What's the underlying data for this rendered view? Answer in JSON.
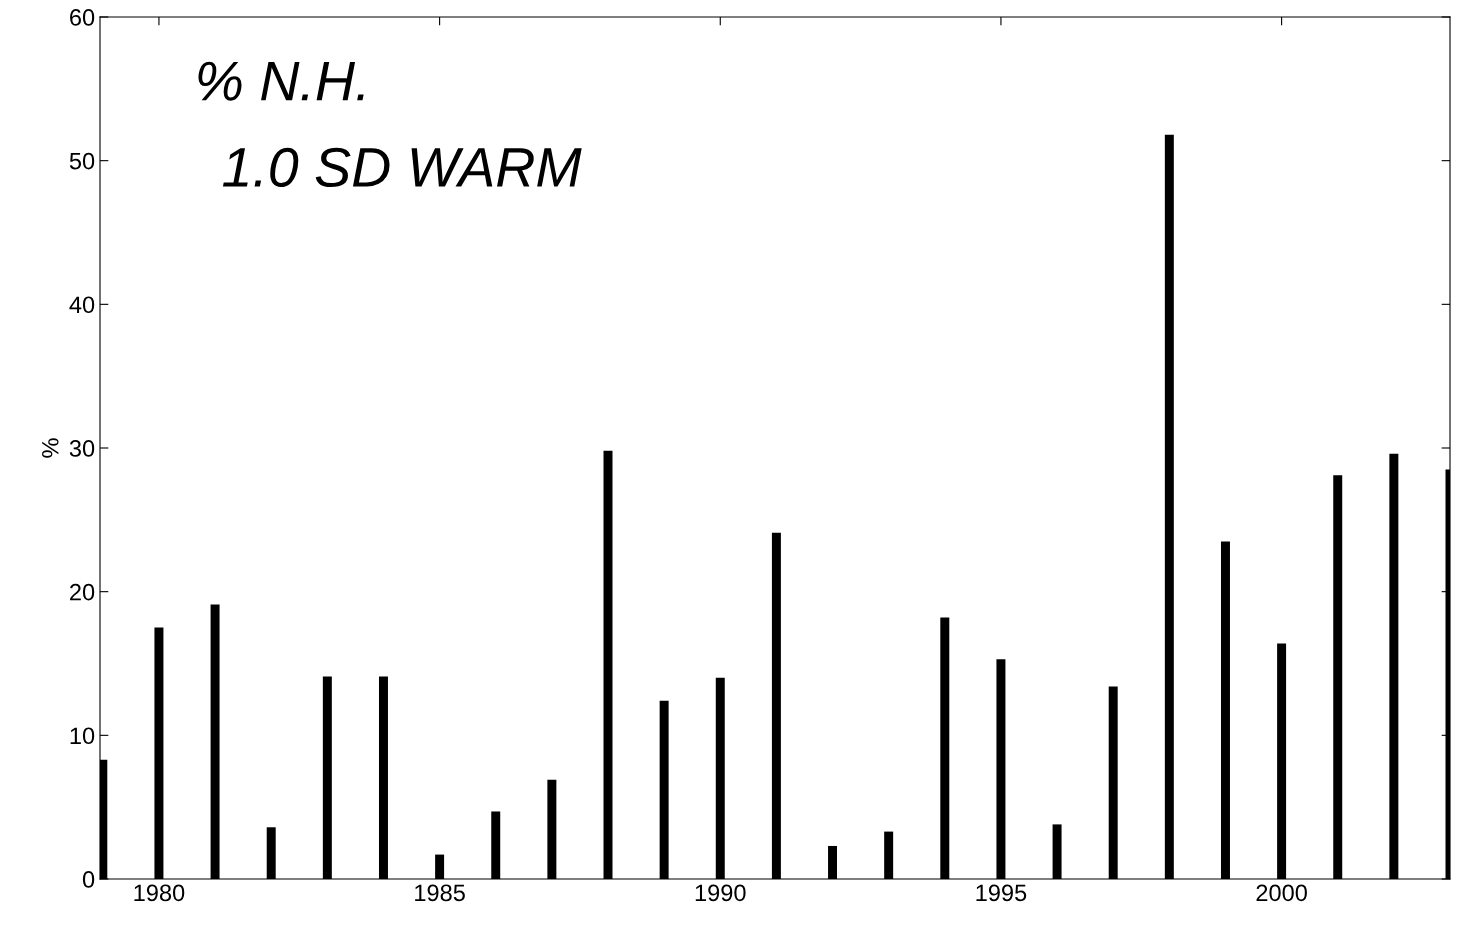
{
  "chart_data": {
    "type": "bar",
    "ylabel": "%",
    "x": [
      1979,
      1980,
      1981,
      1982,
      1983,
      1984,
      1985,
      1986,
      1987,
      1988,
      1989,
      1990,
      1991,
      1992,
      1993,
      1994,
      1995,
      1996,
      1997,
      1998,
      1999,
      2000,
      2001,
      2002,
      2003
    ],
    "values": [
      8.3,
      17.5,
      19.1,
      3.6,
      14.1,
      14.1,
      1.7,
      4.7,
      6.9,
      29.8,
      12.4,
      14.0,
      24.1,
      2.3,
      3.3,
      18.2,
      15.3,
      3.8,
      13.4,
      51.8,
      23.5,
      16.4,
      28.1,
      29.6,
      28.5
    ],
    "color": "#000000",
    "xlim": [
      1978.95,
      2003.0
    ],
    "xticks": [
      1980,
      1985,
      1990,
      1995,
      2000
    ],
    "ylim": [
      0,
      60
    ],
    "yticks": [
      0,
      10,
      20,
      30,
      40,
      50,
      60
    ],
    "grid": false,
    "annotations": [
      "% N.H.",
      "1.0 SD WARM"
    ]
  }
}
